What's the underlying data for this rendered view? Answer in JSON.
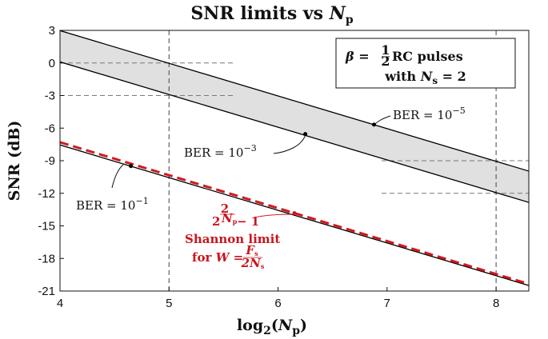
{
  "chart_data": {
    "type": "line",
    "title": "SNR limits vs ",
    "title_var": "N",
    "title_sub": "p",
    "xlabel": "log",
    "xlabel_sub": "2",
    "xlabel_arg_pre": "(",
    "xlabel_var": "N",
    "xlabel_var_sub": "p",
    "xlabel_arg_post": ")",
    "ylabel": "SNR (dB)",
    "xlim": [
      4,
      8.3
    ],
    "ylim": [
      -21,
      3
    ],
    "xticks": [
      4,
      5,
      6,
      7,
      8
    ],
    "yticks": [
      3,
      0,
      -3,
      -6,
      -9,
      -12,
      -15,
      -18,
      -21
    ],
    "xtick_labels": [
      "4",
      "5",
      "6",
      "7",
      "8"
    ],
    "ytick_labels": [
      "3",
      "0",
      "-3",
      "-6",
      "-9",
      "-12",
      "-15",
      "-18",
      "-21"
    ],
    "grid": false,
    "series": [
      {
        "x": [
          4,
          8.3
        ],
        "y": [
          2.98,
          -9.96
        ],
        "color": "#000000",
        "style": "solid"
      },
      {
        "x": [
          4,
          8.3
        ],
        "y": [
          0.1,
          -12.84
        ],
        "color": "#000000",
        "style": "solid"
      },
      {
        "x": [
          4,
          8.3
        ],
        "y": [
          -7.55,
          -20.49
        ],
        "color": "#000000",
        "style": "solid"
      },
      {
        "x": [
          4,
          8.3
        ],
        "y": [
          -7.3,
          -20.35
        ],
        "color": "#d01820",
        "style": "dashed"
      }
    ],
    "shaded_region": {
      "between": [
        0,
        1
      ],
      "color": "#e0e0e0"
    },
    "reference_lines": [
      {
        "orientation": "vertical",
        "x": 5,
        "color": "#444444",
        "style": "dashed"
      },
      {
        "orientation": "vertical",
        "x": 8,
        "color": "#444444",
        "style": "dashed"
      },
      {
        "orientation": "horizontal",
        "y": 0,
        "x_range": [
          4,
          5.6
        ],
        "color": "#777777",
        "style": "dashed"
      },
      {
        "orientation": "horizontal",
        "y": -3,
        "x_range": [
          4,
          5.6
        ],
        "color": "#777777",
        "style": "dashed"
      },
      {
        "orientation": "horizontal",
        "y": -9,
        "x_range": [
          6.95,
          8.3
        ],
        "color": "#777777",
        "style": "dashed"
      },
      {
        "orientation": "horizontal",
        "y": -12,
        "x_range": [
          6.95,
          8.3
        ],
        "color": "#777777",
        "style": "dashed"
      }
    ],
    "annotations": [
      {
        "id": "ber5",
        "text": "BER",
        "eq": " = 10",
        "exp": "−5",
        "marker": {
          "x": 6.88,
          "y": -5.68
        },
        "color": "#000000"
      },
      {
        "id": "ber3",
        "text": "BER",
        "eq": " = 10",
        "exp": "−3",
        "marker": {
          "x": 6.25,
          "y": -6.54
        },
        "color": "#000000"
      },
      {
        "id": "ber1",
        "text": "BER",
        "eq": " = 10",
        "exp": "−1",
        "marker": {
          "x": 4.65,
          "y": -9.5
        },
        "color": "#000000"
      },
      {
        "id": "shannon",
        "formula_base": "2",
        "formula_exp_num": "2",
        "formula_exp_den": "N",
        "formula_exp_den_sub": "p",
        "formula_tail": " − 1",
        "line2": "Shannon limit",
        "line3_pre": "for ",
        "line3_var": "W",
        "line3_eq": " = ",
        "frac_num": "F",
        "frac_num_sub": "s",
        "frac_den": "2N",
        "frac_den_sub": "s",
        "marker": {
          "x": 6.15,
          "y": -13.83
        },
        "color": "#c8161e"
      }
    ],
    "legend_box": {
      "line1_var": "β",
      "line1_eq": " = ",
      "line1_num": "1",
      "line1_den": "2",
      "line1_tail": " RC pulses",
      "line2_pre": "with ",
      "line2_var": "N",
      "line2_sub": "s",
      "line2_tail": " = 2",
      "placement": "top-right"
    }
  }
}
